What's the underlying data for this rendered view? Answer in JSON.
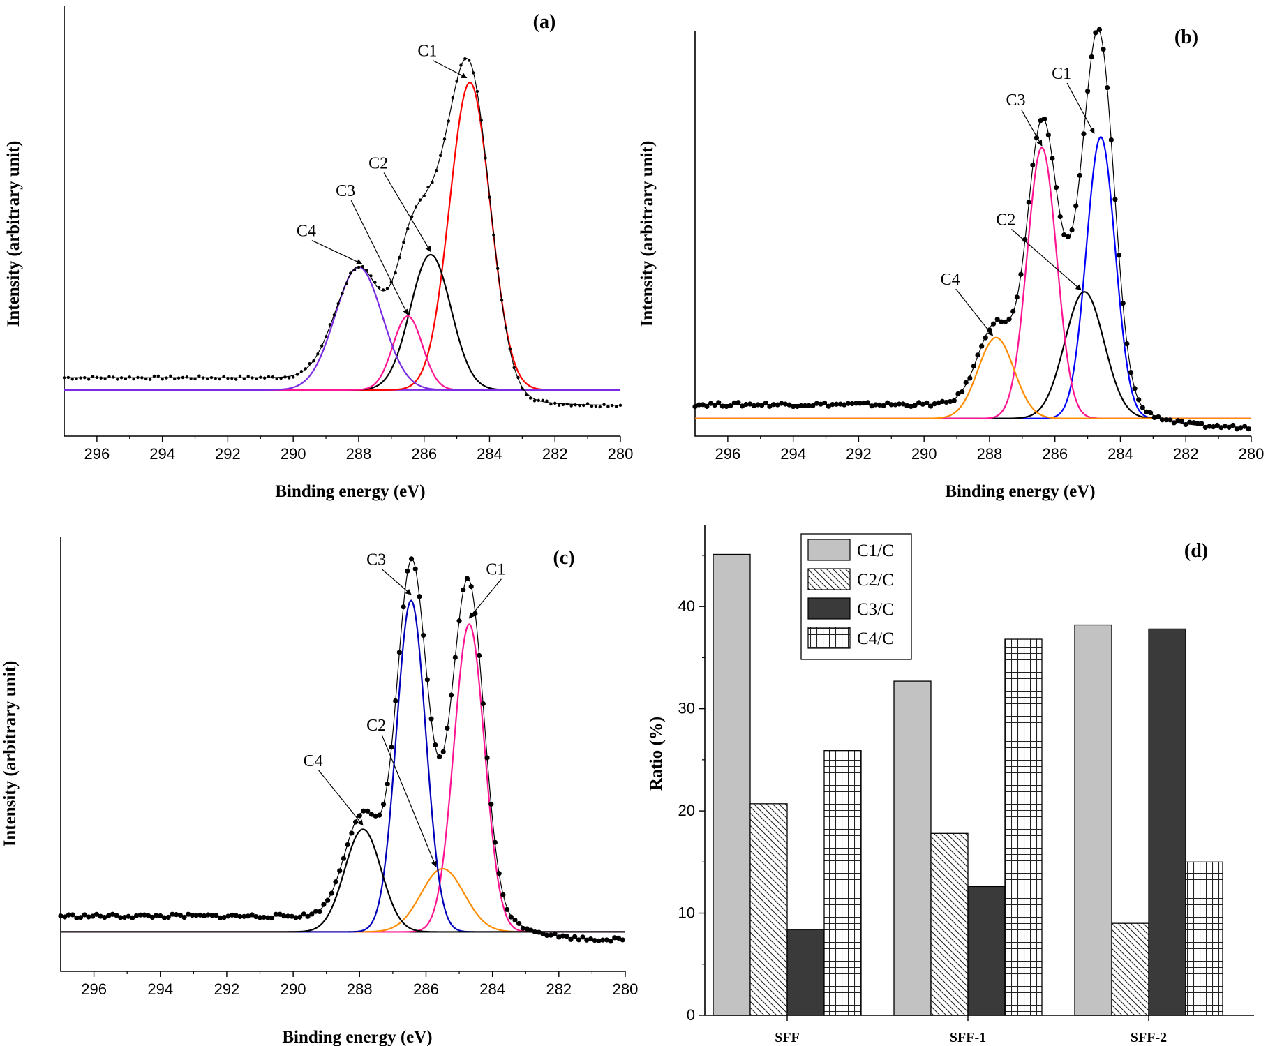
{
  "chart_data": [
    {
      "type": "line",
      "panel": "(a)",
      "xlabel": "Binding energy (eV)",
      "ylabel": "Intensity (arbitrary unit)",
      "xlim": [
        297,
        280
      ],
      "ylim": [
        -0.15,
        1.25
      ],
      "xticks": [
        296,
        294,
        292,
        290,
        288,
        286,
        284,
        282,
        280
      ],
      "baseline": 0,
      "experimental": {
        "peak_sum": true,
        "bg_left": 0.04,
        "bg_right": -0.05,
        "step_center": 284.0,
        "step_width": 0.8,
        "noise": 0.006,
        "step": 0.125,
        "marker_size": 2.2,
        "fit_line": true
      },
      "components": [
        {
          "name": "C1",
          "center": 284.6,
          "height": 1.0,
          "sigma": 0.62,
          "color": "#ff0000"
        },
        {
          "name": "C2",
          "center": 285.8,
          "height": 0.44,
          "sigma": 0.62,
          "color": "#000000"
        },
        {
          "name": "C3",
          "center": 286.5,
          "height": 0.24,
          "sigma": 0.45,
          "color": "#ff1493"
        },
        {
          "name": "C4",
          "center": 288.0,
          "height": 0.4,
          "sigma": 0.72,
          "color": "#7b2be2"
        }
      ],
      "annotations": [
        {
          "text": "C1",
          "label_x": 285.9,
          "label_y": 1.085,
          "arrow_x": 284.7,
          "arrow_y": 1.015
        },
        {
          "text": "C2",
          "label_x": 287.4,
          "label_y": 0.72,
          "arrow_x": 285.8,
          "arrow_y": 0.45
        },
        {
          "text": "C3",
          "label_x": 288.4,
          "label_y": 0.63,
          "arrow_x": 286.5,
          "arrow_y": 0.245
        },
        {
          "text": "C4",
          "label_x": 289.6,
          "label_y": 0.5,
          "arrow_x": 287.9,
          "arrow_y": 0.41
        }
      ]
    },
    {
      "type": "line",
      "panel": "(b)",
      "xlabel": "Binding energy (eV)",
      "ylabel": "Intensity (arbitrary unit)",
      "xlim": [
        297,
        280
      ],
      "ylim": [
        -0.05,
        1.1
      ],
      "xticks": [
        296,
        294,
        292,
        290,
        288,
        286,
        284,
        282,
        280
      ],
      "baseline": 0,
      "experimental": {
        "peak_sum": false,
        "bg_left": 0.04,
        "bg_right": -0.025,
        "step_center": 283.0,
        "step_width": 0.6,
        "noise": 0.006,
        "step": 0.12,
        "marker_size": 3.6,
        "fit_line": true
      },
      "components": [
        {
          "name": "C1",
          "center": 284.6,
          "height": 0.8,
          "sigma": 0.44,
          "color": "#0000ff"
        },
        {
          "name": "C2",
          "center": 285.1,
          "height": 0.36,
          "sigma": 0.6,
          "color": "#000000"
        },
        {
          "name": "C3",
          "center": 286.4,
          "height": 0.77,
          "sigma": 0.45,
          "color": "#ff1493"
        },
        {
          "name": "C4",
          "center": 287.8,
          "height": 0.23,
          "sigma": 0.55,
          "color": "#ff8c00"
        }
      ],
      "annotations": [
        {
          "text": "C1",
          "label_x": 285.8,
          "label_y": 0.965,
          "arrow_x": 284.8,
          "arrow_y": 0.81
        },
        {
          "text": "C3",
          "label_x": 287.2,
          "label_y": 0.89,
          "arrow_x": 286.4,
          "arrow_y": 0.775
        },
        {
          "text": "C2",
          "label_x": 287.5,
          "label_y": 0.55,
          "arrow_x": 285.2,
          "arrow_y": 0.365
        },
        {
          "text": "C4",
          "label_x": 289.2,
          "label_y": 0.38,
          "arrow_x": 287.9,
          "arrow_y": 0.235
        }
      ]
    },
    {
      "type": "line",
      "panel": "(c)",
      "xlabel": "Binding energy (eV)",
      "ylabel": "Intensity (arbitrary unit)",
      "xlim": [
        297,
        280
      ],
      "ylim": [
        -0.1,
        1.0
      ],
      "xticks": [
        296,
        294,
        292,
        290,
        288,
        286,
        284,
        282,
        280
      ],
      "baseline": 0,
      "experimental": {
        "peak_sum": false,
        "bg_left": 0.04,
        "bg_right": -0.02,
        "step_center": 283.0,
        "step_width": 0.6,
        "noise": 0.005,
        "step": 0.12,
        "marker_size": 3.6,
        "fit_line": true
      },
      "components": [
        {
          "name": "C1",
          "center": 284.7,
          "height": 0.78,
          "sigma": 0.46,
          "color": "#ff1493"
        },
        {
          "name": "C2",
          "center": 285.5,
          "height": 0.16,
          "sigma": 0.65,
          "color": "#ff8c00"
        },
        {
          "name": "C3",
          "center": 286.45,
          "height": 0.84,
          "sigma": 0.44,
          "color": "#0000bb"
        },
        {
          "name": "C4",
          "center": 287.9,
          "height": 0.26,
          "sigma": 0.55,
          "color": "#000000"
        }
      ],
      "annotations": [
        {
          "text": "C1",
          "label_x": 283.9,
          "label_y": 0.905,
          "arrow_x": 284.7,
          "arrow_y": 0.795
        },
        {
          "text": "C3",
          "label_x": 287.5,
          "label_y": 0.93,
          "arrow_x": 286.45,
          "arrow_y": 0.855
        },
        {
          "text": "C2",
          "label_x": 287.5,
          "label_y": 0.51,
          "arrow_x": 285.7,
          "arrow_y": 0.165
        },
        {
          "text": "C4",
          "label_x": 289.4,
          "label_y": 0.42,
          "arrow_x": 287.9,
          "arrow_y": 0.27
        }
      ]
    },
    {
      "type": "bar",
      "panel": "(d)",
      "ylabel": "Ratio (%)",
      "categories": [
        "SFF",
        "SFF-1",
        "SFF-2"
      ],
      "ylim": [
        0,
        48
      ],
      "yticks": [
        0,
        10,
        20,
        30,
        40
      ],
      "series": [
        {
          "name": "C1/C",
          "values": [
            45.1,
            32.7,
            38.2
          ],
          "pattern": "solid-light"
        },
        {
          "name": "C2/C",
          "values": [
            20.7,
            17.8,
            9.0
          ],
          "pattern": "diagonal"
        },
        {
          "name": "C3/C",
          "values": [
            8.4,
            12.6,
            37.8
          ],
          "pattern": "solid-dark"
        },
        {
          "name": "C4/C",
          "values": [
            25.9,
            36.8,
            15.0
          ],
          "pattern": "grid"
        }
      ]
    }
  ]
}
